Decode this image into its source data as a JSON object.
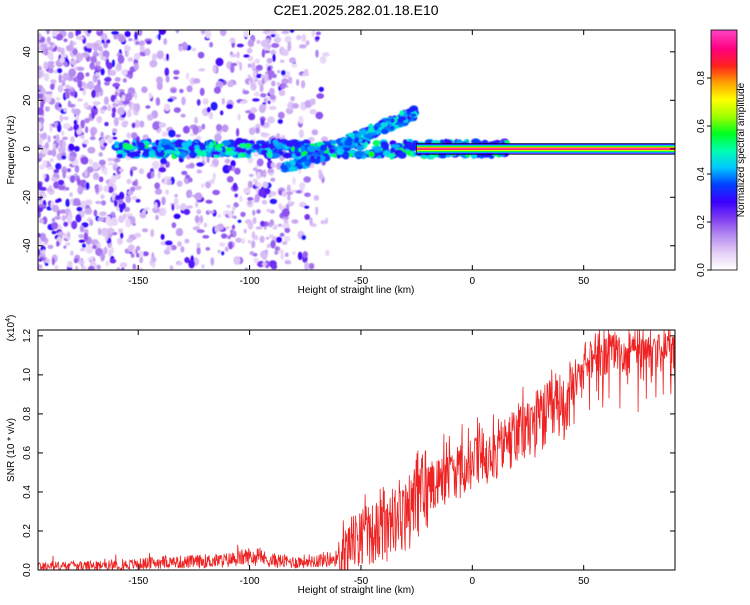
{
  "page_title": "C2E1.2025.282.01.18.E10",
  "chart_data": [
    {
      "type": "heatmap",
      "title": "C2E1.2025.282.01.18.E10",
      "xlabel": "Height of straight line (km)",
      "ylabel": "Frequency (Hz)",
      "xlim": [
        -195,
        91
      ],
      "ylim": [
        -50,
        49
      ],
      "x_ticks": [
        -150,
        -100,
        -50,
        0,
        50
      ],
      "y_ticks": [
        -40,
        -20,
        0,
        20,
        40
      ],
      "colorbar": {
        "label": "Normalized spectral amplitude",
        "range": [
          0,
          1
        ],
        "ticks": [
          "0.0",
          "0.2",
          "0.4",
          "0.6",
          "0.8"
        ],
        "tick_values": [
          0.0,
          0.2,
          0.4,
          0.6,
          0.8
        ],
        "colors": [
          "#ffffff",
          "#e4cef7",
          "#b58cf0",
          "#7f3cf0",
          "#3a00ff",
          "#0040ff",
          "#00c8ff",
          "#00ffb0",
          "#00ff20",
          "#a0ff00",
          "#ffff00",
          "#ffa000",
          "#ff2020",
          "#ff0080",
          "#ff40c0"
        ]
      },
      "features": {
        "scatter_x_range": [
          -195,
          -65
        ],
        "band_x_range": [
          -160,
          15
        ],
        "band_center_hz": 0,
        "rising_branch": {
          "x": [
            -60,
            -25
          ],
          "y": [
            1,
            15
          ]
        },
        "falling_branch": {
          "x": [
            -85,
            -65
          ],
          "y": [
            -8,
            -3
          ]
        },
        "strong_line": {
          "x_range": [
            -25,
            91
          ],
          "y": 0,
          "amplitude": 1.0
        }
      }
    },
    {
      "type": "line",
      "xlabel": "Height of straight line (km)",
      "ylabel": "SNR (10 * v/v)",
      "y_multiplier": "(x10",
      "y_multiplier_exp": "4",
      "y_multiplier_close": ")",
      "xlim": [
        -195,
        91
      ],
      "ylim": [
        0,
        1.23
      ],
      "x_ticks": [
        -150,
        -100,
        -50,
        0,
        50
      ],
      "y_ticks": [
        "0.0",
        "0.2",
        "0.4",
        "0.6",
        "0.8",
        "1.0",
        "1.2"
      ],
      "y_tick_values": [
        0.0,
        0.2,
        0.4,
        0.6,
        0.8,
        1.0,
        1.2
      ],
      "line_color": "#ee2222",
      "series": [
        {
          "name": "SNR",
          "x": [
            -195,
            -170,
            -150,
            -140,
            -130,
            -110,
            -100,
            -90,
            -80,
            -70,
            -60,
            -55,
            -50,
            -40,
            -30,
            -25,
            -20,
            -10,
            0,
            10,
            20,
            30,
            40,
            45,
            50,
            55,
            60,
            70,
            80,
            91
          ],
          "y": [
            0.02,
            0.02,
            0.03,
            0.04,
            0.04,
            0.05,
            0.07,
            0.05,
            0.04,
            0.05,
            0.06,
            0.15,
            0.18,
            0.22,
            0.28,
            0.4,
            0.45,
            0.5,
            0.55,
            0.62,
            0.7,
            0.78,
            0.85,
            0.92,
            1.05,
            1.1,
            1.1,
            1.12,
            1.14,
            1.15
          ]
        }
      ]
    }
  ]
}
